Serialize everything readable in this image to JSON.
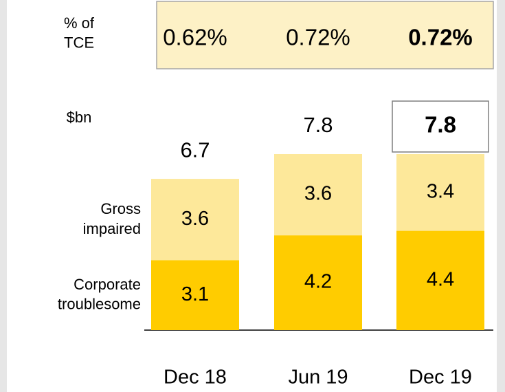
{
  "chart_data": {
    "type": "bar",
    "stacked": true,
    "categories": [
      "Dec 18",
      "Jun 19",
      "Dec 19"
    ],
    "series": [
      {
        "name": [
          "Corporate",
          "troublesome"
        ],
        "color": "#ffcc00",
        "values": [
          3.1,
          4.2,
          4.4
        ]
      },
      {
        "name": [
          "Gross",
          "impaired"
        ],
        "color": "#fde89a",
        "values": [
          3.6,
          3.6,
          3.4
        ]
      }
    ],
    "totals": [
      6.7,
      7.8,
      7.8
    ],
    "unit_label": "$bn",
    "ratio_label": [
      "% of",
      "TCE"
    ],
    "ratios": {
      "values": [
        0.62,
        0.72,
        0.72
      ],
      "value_labels": [
        "0.62%",
        "0.72%",
        "0.72%"
      ]
    },
    "highlight_last": true,
    "ylim": [
      0,
      7.8
    ]
  }
}
